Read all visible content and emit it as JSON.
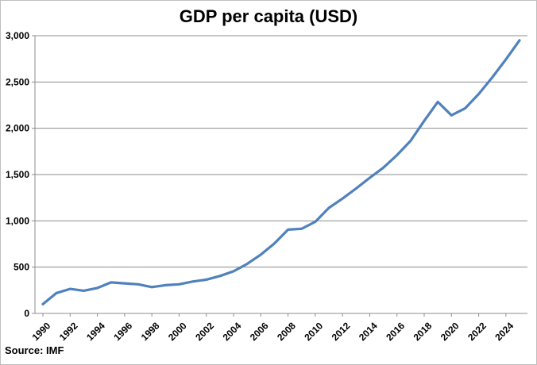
{
  "chart_data": {
    "type": "line",
    "title": "GDP per capita (USD)",
    "xlabel": "",
    "ylabel": "",
    "source": "Source: IMF",
    "x": [
      1990,
      1991,
      1992,
      1993,
      1994,
      1995,
      1996,
      1997,
      1998,
      1999,
      2000,
      2001,
      2002,
      2003,
      2004,
      2005,
      2006,
      2007,
      2008,
      2009,
      2010,
      2011,
      2012,
      2013,
      2014,
      2015,
      2016,
      2017,
      2018,
      2019,
      2020,
      2021,
      2022,
      2023,
      2024,
      2025
    ],
    "series": [
      {
        "values": [
          100,
          220,
          265,
          245,
          275,
          335,
          325,
          315,
          285,
          305,
          315,
          345,
          365,
          405,
          455,
          535,
          635,
          755,
          905,
          915,
          990,
          1140,
          1240,
          1350,
          1465,
          1575,
          1710,
          1865,
          2080,
          2285,
          2140,
          2215,
          2370,
          2550,
          2745,
          2950
        ],
        "color": "#4f81bd"
      }
    ],
    "xlim": [
      1990,
      2025
    ],
    "ylim": [
      0,
      3000
    ],
    "yticks": [
      0,
      500,
      1000,
      1500,
      2000,
      2500,
      3000
    ],
    "ytick_labels": [
      "0",
      "500",
      "1,000",
      "1,500",
      "2,000",
      "2,500",
      "3,000"
    ],
    "xticks": [
      1990,
      1992,
      1994,
      1996,
      1998,
      2000,
      2002,
      2004,
      2006,
      2008,
      2010,
      2012,
      2014,
      2016,
      2018,
      2020,
      2022,
      2024
    ],
    "xtick_labels": [
      "1990",
      "1992",
      "1994",
      "1996",
      "1998",
      "2000",
      "2002",
      "2004",
      "2006",
      "2008",
      "2010",
      "2012",
      "2014",
      "2016",
      "2018",
      "2020",
      "2022",
      "2024"
    ],
    "grid": true,
    "legend": "none"
  }
}
